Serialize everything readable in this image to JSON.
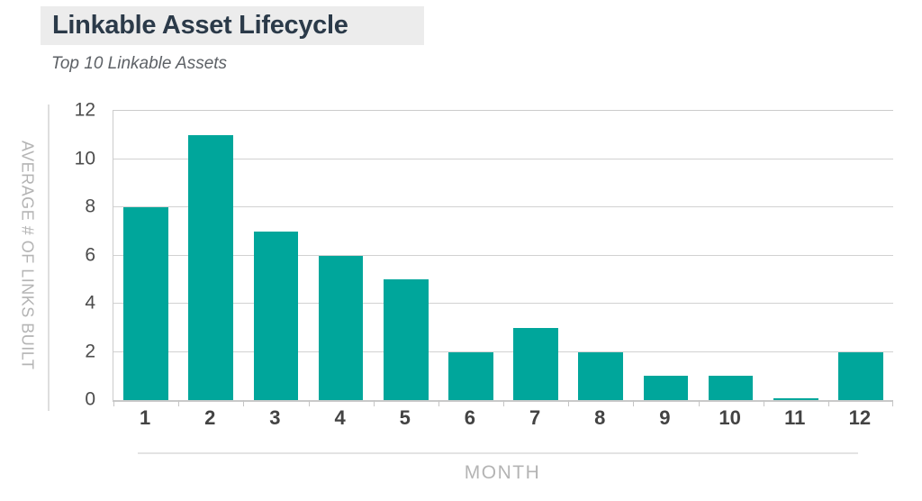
{
  "header": {
    "title": "Linkable Asset Lifecycle",
    "subtitle": "Top 10 Linkable Assets"
  },
  "chart_data": {
    "type": "bar",
    "title": "Linkable Asset Lifecycle",
    "subtitle": "Top 10 Linkable Assets",
    "categories": [
      "1",
      "2",
      "3",
      "4",
      "5",
      "6",
      "7",
      "8",
      "9",
      "10",
      "11",
      "12"
    ],
    "values": [
      8,
      11,
      7,
      6,
      5,
      2,
      3,
      2,
      1,
      1,
      0.08,
      2
    ],
    "xlabel": "MONTH",
    "ylabel": "AVERAGE # OF LINKS BUILT",
    "ylim": [
      0,
      12
    ],
    "yticks": [
      0,
      2,
      4,
      6,
      8,
      10,
      12
    ],
    "grid": true,
    "legend": "none",
    "bar_color": "#00a69b"
  },
  "colors": {
    "accent_teal": "#00a69b",
    "title_text": "#2b3a49",
    "title_highlight_bg": "#ececec",
    "axis_title_gray": "#b4b4b4",
    "tick_label_gray": "#4c4c4c",
    "gridline_gray": "#d2d2d2"
  }
}
